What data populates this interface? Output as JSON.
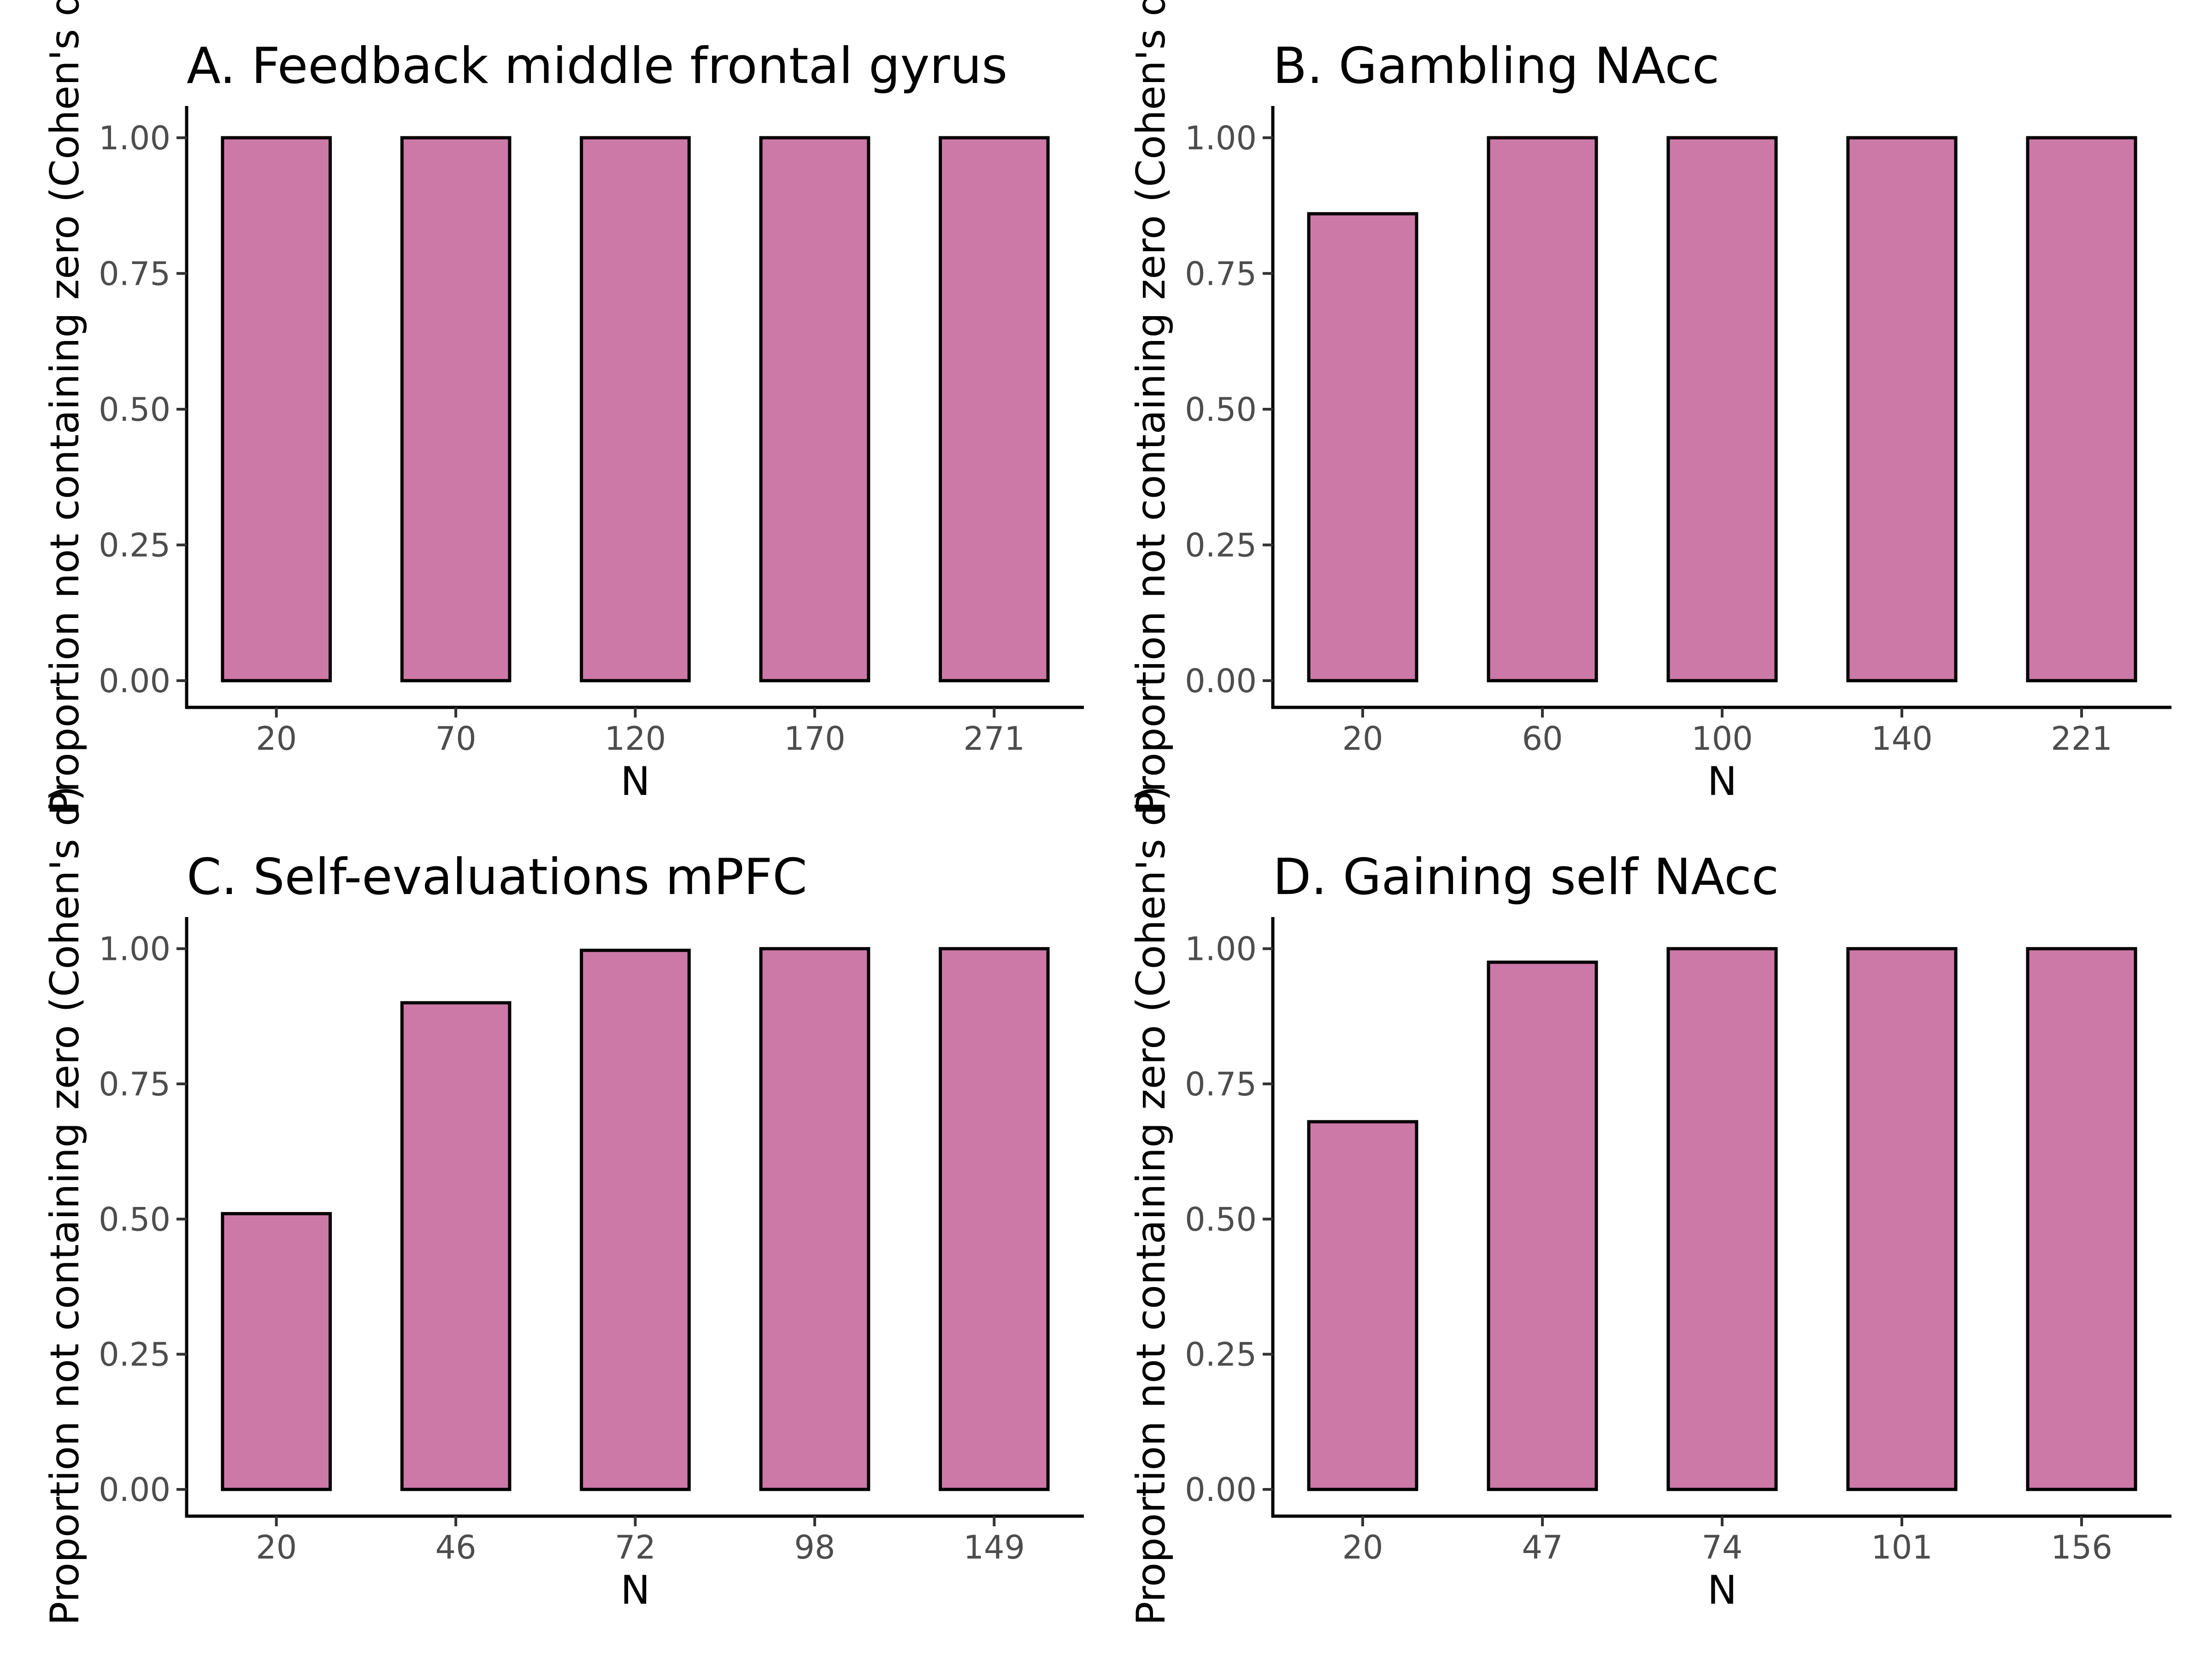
{
  "colors": {
    "bar_fill": "#cc79a7",
    "bar_stroke": "#000000"
  },
  "chart_data": [
    {
      "type": "bar",
      "title": "A. Feedback middle frontal gyrus",
      "xlabel": "N",
      "ylabel": "Proportion not containing zero (Cohen's d)",
      "categories": [
        "20",
        "70",
        "120",
        "170",
        "271"
      ],
      "values": [
        1.0,
        1.0,
        1.0,
        1.0,
        1.0
      ],
      "ylim": [
        0,
        1.05
      ],
      "yticks": [
        0,
        0.25,
        0.5,
        0.75,
        1.0
      ],
      "ytick_labels": [
        "0.00",
        "0.25",
        "0.50",
        "0.75",
        "1.00"
      ],
      "grid": false,
      "legend": "none"
    },
    {
      "type": "bar",
      "title": "B. Gambling NAcc",
      "xlabel": "N",
      "ylabel": "Proportion not containing zero (Cohen's d)",
      "categories": [
        "20",
        "60",
        "100",
        "140",
        "221"
      ],
      "values": [
        0.86,
        1.0,
        1.0,
        1.0,
        1.0
      ],
      "ylim": [
        0,
        1.05
      ],
      "yticks": [
        0,
        0.25,
        0.5,
        0.75,
        1.0
      ],
      "ytick_labels": [
        "0.00",
        "0.25",
        "0.50",
        "0.75",
        "1.00"
      ],
      "grid": false,
      "legend": "none"
    },
    {
      "type": "bar",
      "title": "C. Self-evaluations mPFC",
      "xlabel": "N",
      "ylabel": "Proportion not containing zero (Cohen's d)",
      "categories": [
        "20",
        "46",
        "72",
        "98",
        "149"
      ],
      "values": [
        0.51,
        0.9,
        0.997,
        1.0,
        1.0
      ],
      "ylim": [
        0,
        1.05
      ],
      "yticks": [
        0,
        0.25,
        0.5,
        0.75,
        1.0
      ],
      "ytick_labels": [
        "0.00",
        "0.25",
        "0.50",
        "0.75",
        "1.00"
      ],
      "grid": false,
      "legend": "none"
    },
    {
      "type": "bar",
      "title": "D. Gaining self NAcc",
      "xlabel": "N",
      "ylabel": "Proportion not containing zero (Cohen's d)",
      "categories": [
        "20",
        "47",
        "74",
        "101",
        "156"
      ],
      "values": [
        0.68,
        0.975,
        1.0,
        1.0,
        1.0
      ],
      "ylim": [
        0,
        1.05
      ],
      "yticks": [
        0,
        0.25,
        0.5,
        0.75,
        1.0
      ],
      "ytick_labels": [
        "0.00",
        "0.25",
        "0.50",
        "0.75",
        "1.00"
      ],
      "grid": false,
      "legend": "none"
    }
  ]
}
